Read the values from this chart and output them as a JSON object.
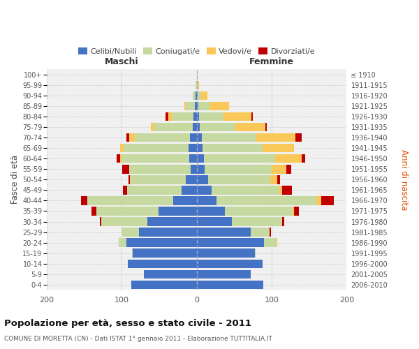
{
  "age_groups": [
    "0-4",
    "5-9",
    "10-14",
    "15-19",
    "20-24",
    "25-29",
    "30-34",
    "35-39",
    "40-44",
    "45-49",
    "50-54",
    "55-59",
    "60-64",
    "65-69",
    "70-74",
    "75-79",
    "80-84",
    "85-89",
    "90-94",
    "95-99",
    "100+"
  ],
  "birth_years": [
    "2006-2010",
    "2001-2005",
    "1996-2000",
    "1991-1995",
    "1986-1990",
    "1981-1985",
    "1976-1980",
    "1971-1975",
    "1966-1970",
    "1961-1965",
    "1956-1960",
    "1951-1955",
    "1946-1950",
    "1941-1945",
    "1936-1940",
    "1931-1935",
    "1926-1930",
    "1921-1925",
    "1916-1920",
    "1911-1915",
    "≤ 1910"
  ],
  "males": {
    "celibe": [
      87,
      70,
      92,
      85,
      94,
      77,
      66,
      51,
      31,
      20,
      14,
      8,
      10,
      11,
      9,
      5,
      4,
      2,
      1,
      0,
      0
    ],
    "coniugato": [
      0,
      0,
      0,
      1,
      10,
      23,
      61,
      83,
      115,
      73,
      74,
      82,
      89,
      86,
      73,
      51,
      29,
      12,
      4,
      1,
      0
    ],
    "vedovo": [
      0,
      0,
      0,
      0,
      0,
      0,
      0,
      0,
      0,
      0,
      1,
      0,
      3,
      5,
      8,
      5,
      5,
      2,
      0,
      0,
      0
    ],
    "divorziato": [
      0,
      0,
      0,
      0,
      0,
      0,
      2,
      6,
      8,
      5,
      2,
      9,
      5,
      0,
      4,
      0,
      3,
      0,
      0,
      0,
      0
    ]
  },
  "females": {
    "nubile": [
      89,
      72,
      88,
      78,
      90,
      72,
      47,
      38,
      27,
      20,
      15,
      11,
      10,
      8,
      7,
      4,
      3,
      2,
      1,
      0,
      0
    ],
    "coniugata": [
      0,
      0,
      0,
      1,
      17,
      25,
      67,
      90,
      133,
      90,
      83,
      89,
      95,
      80,
      73,
      48,
      33,
      15,
      5,
      1,
      0
    ],
    "vedova": [
      0,
      0,
      0,
      0,
      1,
      0,
      0,
      2,
      6,
      4,
      10,
      20,
      35,
      42,
      52,
      40,
      37,
      26,
      8,
      2,
      0
    ],
    "divorziata": [
      0,
      0,
      0,
      0,
      0,
      2,
      3,
      6,
      17,
      13,
      3,
      6,
      5,
      0,
      8,
      2,
      2,
      0,
      0,
      0,
      0
    ]
  },
  "colors": {
    "celibe": "#4472C4",
    "coniugato": "#C6D9A0",
    "vedovo": "#FAC858",
    "divorziato": "#C00000"
  },
  "title": "Popolazione per età, sesso e stato civile - 2011",
  "subtitle": "COMUNE DI MORETTA (CN) - Dati ISTAT 1° gennaio 2011 - Elaborazione TUTTITALIA.IT",
  "ylabel_left": "Fasce di età",
  "ylabel_right": "Anni di nascita",
  "xlabel_left": "Maschi",
  "xlabel_right": "Femmine",
  "xlim": 200,
  "background_color": "#ffffff",
  "grid_color": "#cccccc",
  "legend_labels": [
    "Celibi/Nubili",
    "Coniugati/e",
    "Vedovi/e",
    "Divorziati/e"
  ]
}
